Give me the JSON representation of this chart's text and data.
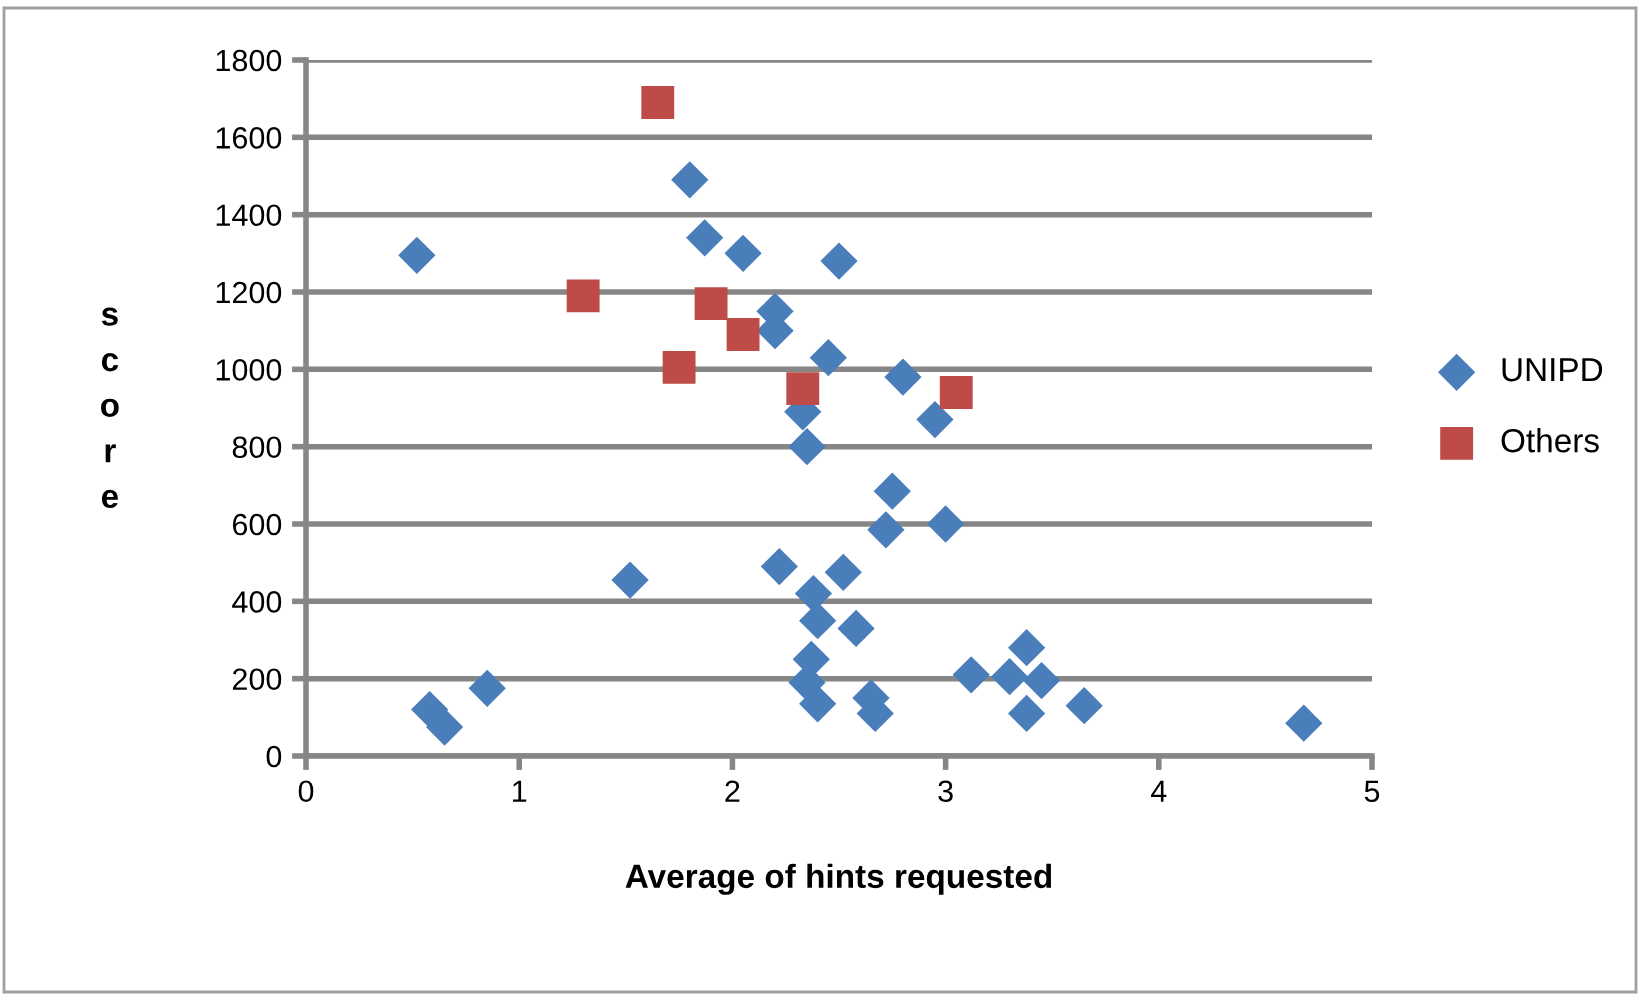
{
  "chart_data": {
    "type": "scatter",
    "xlabel": "Average of hints requested",
    "ylabel": "score",
    "xlim": [
      0,
      5
    ],
    "ylim": [
      0,
      1800
    ],
    "xticks": [
      0,
      1,
      2,
      3,
      4,
      5
    ],
    "yticks": [
      0,
      200,
      400,
      600,
      800,
      1000,
      1200,
      1400,
      1600,
      1800
    ],
    "grid": "y",
    "legend": "right",
    "series": [
      {
        "name": "UNIPD",
        "color": "#4a7ebb",
        "marker": "diamond",
        "x": [
          0.52,
          0.58,
          0.65,
          0.85,
          1.52,
          1.8,
          1.87,
          2.05,
          2.2,
          2.2,
          2.5,
          2.45,
          2.8,
          2.33,
          2.35,
          2.95,
          2.75,
          2.72,
          3.0,
          2.22,
          2.52,
          2.38,
          2.4,
          2.58,
          2.37,
          2.35,
          2.4,
          2.65,
          2.67,
          3.12,
          3.3,
          3.38,
          3.45,
          3.38,
          3.65,
          4.68
        ],
        "values": [
          1295,
          120,
          75,
          175,
          455,
          1490,
          1340,
          1300,
          1150,
          1100,
          1280,
          1030,
          980,
          890,
          800,
          870,
          685,
          585,
          600,
          490,
          475,
          420,
          350,
          330,
          250,
          190,
          135,
          150,
          110,
          210,
          205,
          280,
          195,
          110,
          130,
          85
        ]
      },
      {
        "name": "Others",
        "color": "#be4b48",
        "marker": "square",
        "x": [
          1.65,
          1.3,
          1.9,
          2.05,
          1.75,
          2.33,
          3.05
        ],
        "values": [
          1690,
          1190,
          1170,
          1090,
          1005,
          950,
          940
        ]
      }
    ]
  }
}
